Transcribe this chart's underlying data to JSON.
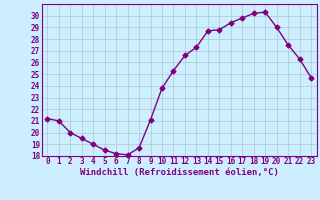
{
  "x": [
    0,
    1,
    2,
    3,
    4,
    5,
    6,
    7,
    8,
    9,
    10,
    11,
    12,
    13,
    14,
    15,
    16,
    17,
    18,
    19,
    20,
    21,
    22,
    23
  ],
  "y": [
    21.2,
    21.0,
    20.0,
    19.5,
    19.0,
    18.5,
    18.2,
    18.1,
    18.7,
    21.1,
    23.8,
    25.3,
    26.6,
    27.3,
    28.7,
    28.8,
    29.4,
    29.8,
    30.2,
    30.3,
    29.0,
    27.5,
    26.3,
    24.7
  ],
  "line_color": "#800080",
  "marker": "D",
  "marker_size": 2.5,
  "bg_color": "#cceeff",
  "grid_color": "#aacccc",
  "xlabel": "Windchill (Refroidissement éolien,°C)",
  "xlabel_color": "#800080",
  "tick_color": "#800080",
  "ylim": [
    18,
    31
  ],
  "yticks": [
    18,
    19,
    20,
    21,
    22,
    23,
    24,
    25,
    26,
    27,
    28,
    29,
    30
  ],
  "xlim": [
    -0.5,
    23.5
  ]
}
